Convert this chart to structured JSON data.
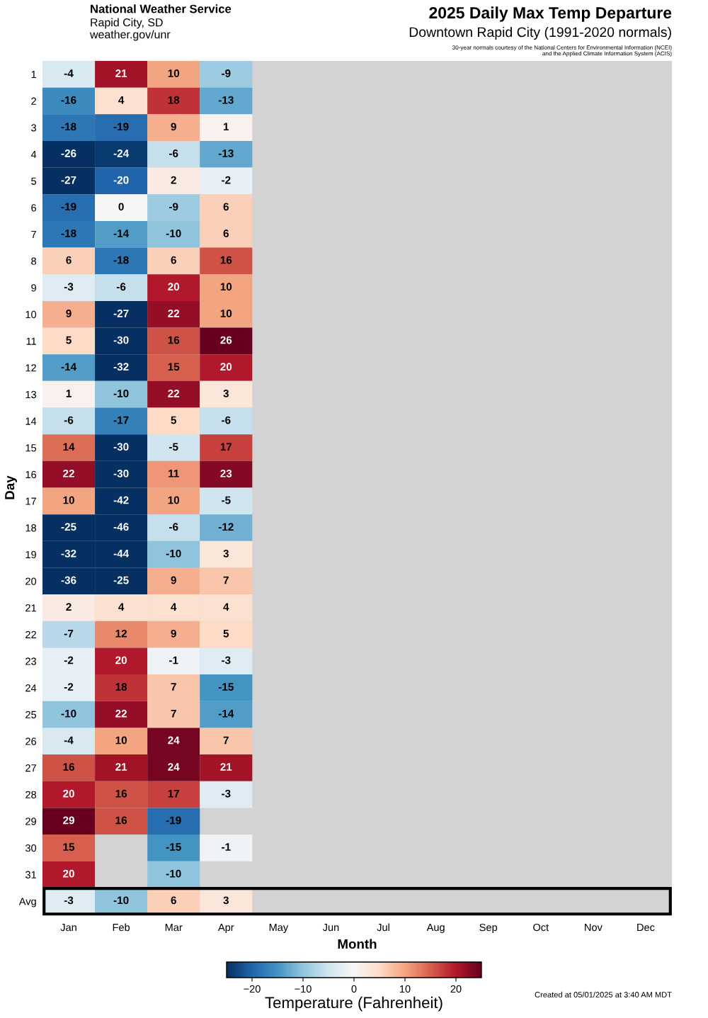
{
  "chart_data": {
    "type": "heatmap",
    "title": "2025 Daily Max Temp Departure",
    "subtitle": "Downtown Rapid City (1991-2020 normals)",
    "annotations": [
      "National Weather Service",
      "Rapid City, SD",
      "weather.gov/unr",
      "30-year normals courtesy of the National Centers for Environmental Information (NCEI)\nand the Applied Climate Information System (ACIS)",
      "Created at 05/01/2025 at 3:40 AM MDT"
    ],
    "xlabel": "Month",
    "ylabel": "Day",
    "data_labels": true,
    "categories": [
      "Jan",
      "Feb",
      "Mar",
      "Apr",
      "May",
      "Jun",
      "Jul",
      "Aug",
      "Sep",
      "Oct",
      "Nov",
      "Dec"
    ],
    "y_categories": [
      "1",
      "2",
      "3",
      "4",
      "5",
      "6",
      "7",
      "8",
      "9",
      "10",
      "11",
      "12",
      "13",
      "14",
      "15",
      "16",
      "17",
      "18",
      "19",
      "20",
      "21",
      "22",
      "23",
      "24",
      "25",
      "26",
      "27",
      "28",
      "29",
      "30",
      "31",
      "Avg"
    ],
    "cells": [
      [
        -4,
        21,
        10,
        -9,
        null,
        null,
        null,
        null,
        null,
        null,
        null,
        null
      ],
      [
        -16,
        4,
        18,
        -13,
        null,
        null,
        null,
        null,
        null,
        null,
        null,
        null
      ],
      [
        -18,
        -19,
        9,
        1,
        null,
        null,
        null,
        null,
        null,
        null,
        null,
        null
      ],
      [
        -26,
        -24,
        -6,
        -13,
        null,
        null,
        null,
        null,
        null,
        null,
        null,
        null
      ],
      [
        -27,
        -20,
        2,
        -2,
        null,
        null,
        null,
        null,
        null,
        null,
        null,
        null
      ],
      [
        -19,
        0,
        -9,
        6,
        null,
        null,
        null,
        null,
        null,
        null,
        null,
        null
      ],
      [
        -18,
        -14,
        -10,
        6,
        null,
        null,
        null,
        null,
        null,
        null,
        null,
        null
      ],
      [
        6,
        -18,
        6,
        16,
        null,
        null,
        null,
        null,
        null,
        null,
        null,
        null
      ],
      [
        -3,
        -6,
        20,
        10,
        null,
        null,
        null,
        null,
        null,
        null,
        null,
        null
      ],
      [
        9,
        -27,
        22,
        10,
        null,
        null,
        null,
        null,
        null,
        null,
        null,
        null
      ],
      [
        5,
        -30,
        16,
        26,
        null,
        null,
        null,
        null,
        null,
        null,
        null,
        null
      ],
      [
        -14,
        -32,
        15,
        20,
        null,
        null,
        null,
        null,
        null,
        null,
        null,
        null
      ],
      [
        1,
        -10,
        22,
        3,
        null,
        null,
        null,
        null,
        null,
        null,
        null,
        null
      ],
      [
        -6,
        -17,
        5,
        -6,
        null,
        null,
        null,
        null,
        null,
        null,
        null,
        null
      ],
      [
        14,
        -30,
        -5,
        17,
        null,
        null,
        null,
        null,
        null,
        null,
        null,
        null
      ],
      [
        22,
        -30,
        11,
        23,
        null,
        null,
        null,
        null,
        null,
        null,
        null,
        null
      ],
      [
        10,
        -42,
        10,
        -5,
        null,
        null,
        null,
        null,
        null,
        null,
        null,
        null
      ],
      [
        -25,
        -46,
        -6,
        -12,
        null,
        null,
        null,
        null,
        null,
        null,
        null,
        null
      ],
      [
        -32,
        -44,
        -10,
        3,
        null,
        null,
        null,
        null,
        null,
        null,
        null,
        null
      ],
      [
        -36,
        -25,
        9,
        7,
        null,
        null,
        null,
        null,
        null,
        null,
        null,
        null
      ],
      [
        2,
        4,
        4,
        4,
        null,
        null,
        null,
        null,
        null,
        null,
        null,
        null
      ],
      [
        -7,
        12,
        9,
        5,
        null,
        null,
        null,
        null,
        null,
        null,
        null,
        null
      ],
      [
        -2,
        20,
        -1,
        -3,
        null,
        null,
        null,
        null,
        null,
        null,
        null,
        null
      ],
      [
        -2,
        18,
        7,
        -15,
        null,
        null,
        null,
        null,
        null,
        null,
        null,
        null
      ],
      [
        -10,
        22,
        7,
        -14,
        null,
        null,
        null,
        null,
        null,
        null,
        null,
        null
      ],
      [
        -4,
        10,
        24,
        7,
        null,
        null,
        null,
        null,
        null,
        null,
        null,
        null
      ],
      [
        16,
        21,
        24,
        21,
        null,
        null,
        null,
        null,
        null,
        null,
        null,
        null
      ],
      [
        20,
        16,
        17,
        -3,
        null,
        null,
        null,
        null,
        null,
        null,
        null,
        null
      ],
      [
        29,
        16,
        -19,
        null,
        null,
        null,
        null,
        null,
        null,
        null,
        null,
        null
      ],
      [
        15,
        null,
        -15,
        -1,
        null,
        null,
        null,
        null,
        null,
        null,
        null,
        null
      ],
      [
        20,
        null,
        -10,
        null,
        null,
        null,
        null,
        null,
        null,
        null,
        null,
        null
      ],
      [
        -3,
        -10,
        6,
        3,
        null,
        null,
        null,
        null,
        null,
        null,
        null,
        null
      ]
    ],
    "clim": [
      -25,
      25
    ],
    "cticks": [
      -20,
      -10,
      0,
      10,
      20
    ],
    "clabel": "Temperature (Fahrenheit)"
  }
}
